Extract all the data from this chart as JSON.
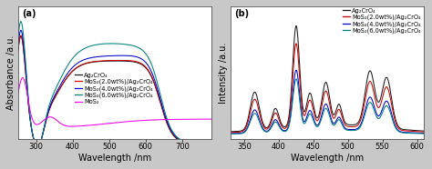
{
  "panel_a": {
    "label": "(a)",
    "xlabel": "Wavelength /nm",
    "ylabel": "Absorbance /a.u.",
    "xlim": [
      250,
      780
    ],
    "xticks": [
      300,
      400,
      500,
      600,
      700
    ],
    "legend": [
      "Ag₂CrO₄",
      "MoS₂(2.0wt%)/Ag₂CrO₄",
      "MoS₂(4.0wt%)/Ag₂CrO₄",
      "MoS₂(6.0wt%)/Ag₂CrO₄",
      "MoS₂"
    ],
    "colors": [
      "#1a1a1a",
      "#cc0000",
      "#0000cc",
      "#008080",
      "#ee00ee"
    ]
  },
  "panel_b": {
    "label": "(b)",
    "xlabel": "Wavelength /nm",
    "ylabel": "Intensity /a.u.",
    "xlim": [
      330,
      610
    ],
    "xticks": [
      350,
      400,
      450,
      500,
      550,
      600
    ],
    "legend": [
      "Ag₂CrO₄",
      "MoS₂(2.0wt%)/Ag₂CrO₄",
      "MoS₂(4.0wt%)/Ag₂CrO₄",
      "MoS₂(6.0wt%)/Ag₂CrO₄"
    ],
    "colors": [
      "#1a1a1a",
      "#cc0000",
      "#0000cc",
      "#008080"
    ]
  },
  "outer_bg": "#c8c8c8",
  "plot_bg": "#ffffff",
  "font_size": 6.5,
  "legend_font_size": 4.8,
  "label_font_size": 7.0,
  "tick_font_size": 6.0
}
